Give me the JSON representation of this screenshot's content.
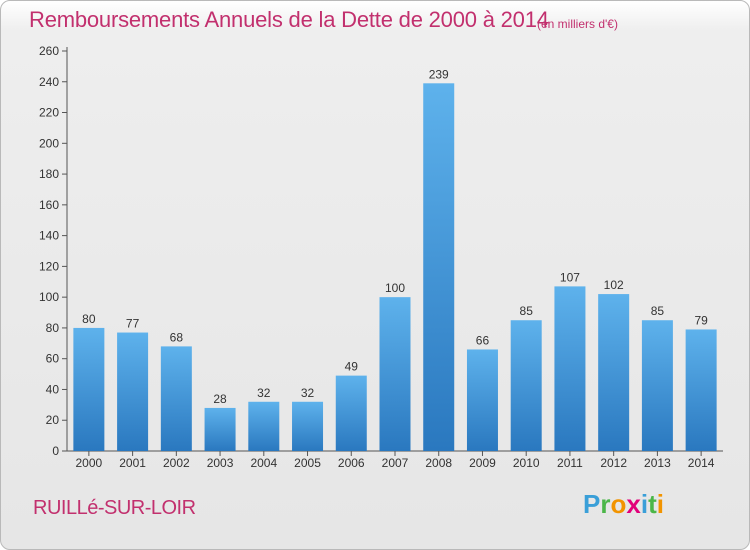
{
  "header": {
    "title": "Remboursements Annuels de la Dette de 2000 à 2014",
    "units": "(en milliers d'€)"
  },
  "footer": {
    "place": "RUILLé-SUR-LOIR",
    "logo_text": "Proxiti"
  },
  "colors": {
    "title": "#c2306e",
    "bar_light": "#5eb2ec",
    "bar_dark": "#2a78bf",
    "axis": "#555555",
    "grid": "#cfcfcf"
  },
  "chart_data": {
    "type": "bar",
    "title": "Remboursements Annuels de la Dette de 2000 à 2014",
    "xlabel": "",
    "ylabel": "",
    "categories": [
      "2000",
      "2001",
      "2002",
      "2003",
      "2004",
      "2005",
      "2006",
      "2007",
      "2008",
      "2009",
      "2010",
      "2011",
      "2012",
      "2013",
      "2014"
    ],
    "values": [
      80,
      77,
      68,
      28,
      32,
      32,
      49,
      100,
      239,
      66,
      85,
      107,
      102,
      85,
      79
    ],
    "ylim": [
      0,
      260
    ],
    "yticks": [
      0,
      20,
      40,
      60,
      80,
      100,
      120,
      140,
      160,
      180,
      200,
      220,
      240,
      260
    ],
    "grid": false,
    "data_labels": true
  }
}
